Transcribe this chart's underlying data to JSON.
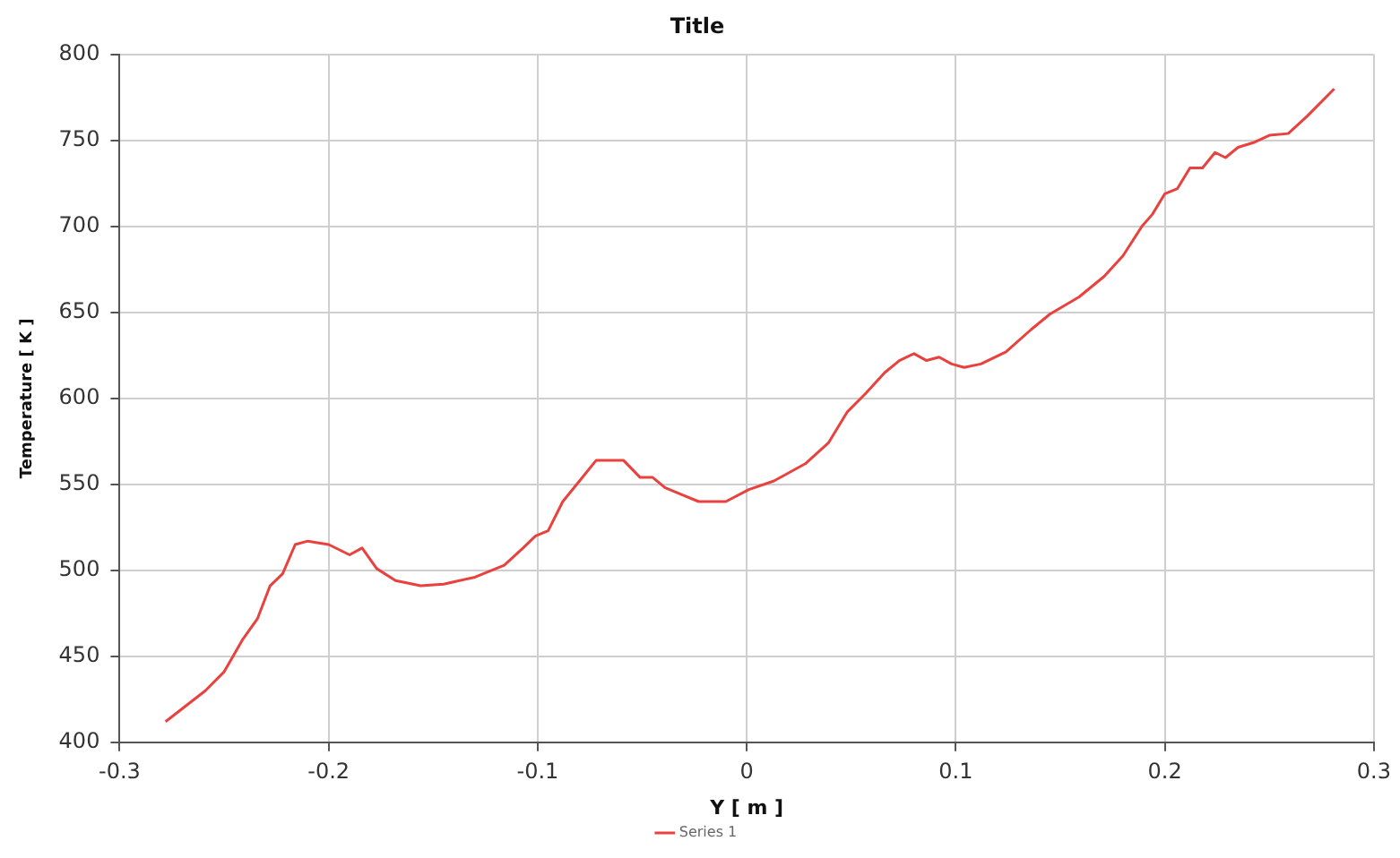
{
  "chart_data": {
    "type": "line",
    "title": "Title",
    "xlabel": "Y [ m ]",
    "ylabel": "Temperature [ K ]",
    "series": [
      {
        "name": "Series 1",
        "color": "#e8413e",
        "x": [
          -0.278,
          -0.259,
          -0.25,
          -0.241,
          -0.234,
          -0.228,
          -0.222,
          -0.216,
          -0.21,
          -0.2,
          -0.19,
          -0.184,
          -0.177,
          -0.168,
          -0.156,
          -0.145,
          -0.13,
          -0.116,
          -0.107,
          -0.101,
          -0.095,
          -0.088,
          -0.08,
          -0.072,
          -0.059,
          -0.051,
          -0.045,
          -0.039,
          -0.031,
          -0.023,
          -0.01,
          0.001,
          0.013,
          0.028,
          0.039,
          0.048,
          0.057,
          0.066,
          0.073,
          0.08,
          0.086,
          0.092,
          0.098,
          0.104,
          0.112,
          0.124,
          0.136,
          0.145,
          0.159,
          0.171,
          0.18,
          0.189,
          0.194,
          0.2,
          0.206,
          0.212,
          0.218,
          0.224,
          0.229,
          0.235,
          0.243,
          0.25,
          0.259,
          0.268,
          0.281
        ],
        "values": [
          412,
          430,
          441,
          460,
          472,
          491,
          498,
          515,
          517,
          515,
          509,
          513,
          501,
          494,
          491,
          492,
          496,
          503,
          513,
          520,
          523,
          540,
          552,
          564,
          564,
          554,
          554,
          548,
          544,
          540,
          540,
          547,
          552,
          562,
          574,
          592,
          603,
          615,
          622,
          626,
          622,
          624,
          620,
          618,
          620,
          627,
          640,
          649,
          659,
          671,
          683,
          700,
          707,
          719,
          722,
          734,
          734,
          743,
          740,
          746,
          749,
          753,
          754,
          764,
          780
        ]
      }
    ],
    "xlim": [
      -0.3,
      0.3
    ],
    "ylim": [
      400,
      800
    ],
    "xticks": [
      -0.3,
      -0.2,
      -0.1,
      0,
      0.1,
      0.2,
      0.3
    ],
    "yticks": [
      400,
      450,
      500,
      550,
      600,
      650,
      700,
      750,
      800
    ],
    "grid": true,
    "legend": "bottom"
  }
}
